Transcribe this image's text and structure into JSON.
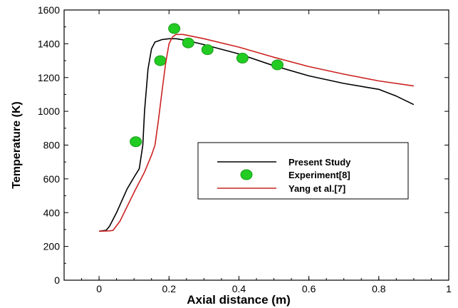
{
  "chart_data": {
    "type": "line",
    "title": "",
    "xlabel": "Axial distance (m)",
    "ylabel": "Temperature (K)",
    "xlim": [
      -0.1,
      1.0
    ],
    "ylim": [
      0,
      1600
    ],
    "xticks": [
      0,
      0.2,
      0.4,
      0.6,
      0.8,
      1
    ],
    "xtick_labels": [
      "0",
      "0.2",
      "0.4",
      "0.6",
      "0.8",
      "1"
    ],
    "yticks": [
      0,
      200,
      400,
      600,
      800,
      1000,
      1200,
      1400,
      1600
    ],
    "ytick_labels": [
      "0",
      "200",
      "400",
      "600",
      "800",
      "1000",
      "1200",
      "1400",
      "1600"
    ],
    "grid": false,
    "legend_position": "center-right",
    "series": [
      {
        "name": "Present Study",
        "kind": "line",
        "color": "#000000",
        "x": [
          0.0,
          0.02,
          0.03,
          0.05,
          0.08,
          0.1,
          0.115,
          0.125,
          0.13,
          0.14,
          0.15,
          0.16,
          0.18,
          0.2,
          0.22,
          0.25,
          0.3,
          0.4,
          0.5,
          0.6,
          0.7,
          0.8,
          0.85,
          0.9
        ],
        "y": [
          290,
          295,
          320,
          400,
          540,
          610,
          660,
          800,
          1000,
          1250,
          1370,
          1410,
          1425,
          1430,
          1430,
          1420,
          1395,
          1340,
          1270,
          1210,
          1165,
          1130,
          1090,
          1040
        ]
      },
      {
        "name": "Experiment[8]",
        "kind": "scatter",
        "color": "#22cc22",
        "x": [
          0.105,
          0.175,
          0.215,
          0.255,
          0.31,
          0.41,
          0.51
        ],
        "y": [
          820,
          1300,
          1490,
          1405,
          1365,
          1315,
          1275
        ]
      },
      {
        "name": "Yang et al.[7]",
        "kind": "line",
        "color": "#cc2222",
        "x": [
          0.0,
          0.03,
          0.04,
          0.06,
          0.1,
          0.13,
          0.15,
          0.16,
          0.17,
          0.18,
          0.19,
          0.2,
          0.21,
          0.22,
          0.24,
          0.3,
          0.4,
          0.5,
          0.6,
          0.7,
          0.8,
          0.9
        ],
        "y": [
          290,
          292,
          295,
          350,
          520,
          640,
          740,
          800,
          950,
          1120,
          1280,
          1400,
          1440,
          1455,
          1455,
          1430,
          1380,
          1320,
          1265,
          1220,
          1180,
          1150
        ]
      }
    ]
  }
}
